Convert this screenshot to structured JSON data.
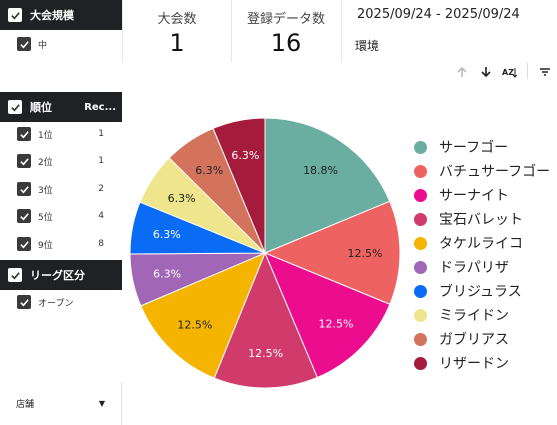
{
  "filters": {
    "size": {
      "title": "大会規模",
      "items": [
        {
          "label": "中"
        }
      ]
    },
    "rank": {
      "title": "順位",
      "col2": "Rec...",
      "items": [
        {
          "label": "1位",
          "count": "1"
        },
        {
          "label": "2位",
          "count": "1"
        },
        {
          "label": "3位",
          "count": "2"
        },
        {
          "label": "5位",
          "count": "4"
        },
        {
          "label": "9位",
          "count": "8"
        }
      ]
    },
    "league": {
      "title": "リーグ区分",
      "items": [
        {
          "label": "オープン"
        }
      ]
    },
    "store": {
      "label": "店舗"
    }
  },
  "scorecards": [
    {
      "title": "大会数",
      "value": "1"
    },
    {
      "title": "登録データ数",
      "value": "16"
    }
  ],
  "date_range": "2025/09/24 - 2025/09/24",
  "environment_label": "環境",
  "toolbar": {
    "icons": [
      "sort-ascending-icon",
      "sort-descending-icon",
      "sort-alpha-icon",
      "filter-icon"
    ],
    "az_label": "AZ"
  },
  "chart_data": {
    "type": "pie",
    "categories": [
      "サーフゴー",
      "バチュサーフゴー",
      "サーナイト",
      "宝石バレット",
      "タケルライコ",
      "ドラパリザ",
      "ブリジュラス",
      "ミライドン",
      "ガブリアス",
      "リザードン"
    ],
    "values": [
      18.8,
      12.5,
      12.5,
      12.5,
      12.5,
      6.3,
      6.3,
      6.3,
      6.3,
      6.3
    ],
    "labels": [
      "18.8%",
      "12.5%",
      "12.5%",
      "12.5%",
      "12.5%",
      "6.3%",
      "6.3%",
      "6.3%",
      "6.3%",
      "6.3%"
    ],
    "colors": [
      "#6aaea2",
      "#ef6262",
      "#ec0d8f",
      "#d13b6b",
      "#f4b400",
      "#a166b5",
      "#0a6cf5",
      "#efe58c",
      "#d3735b",
      "#a51b3c"
    ],
    "label_colors": [
      "#222222",
      "#222222",
      "#ffffff",
      "#ffffff",
      "#222222",
      "#ffffff",
      "#ffffff",
      "#222222",
      "#222222",
      "#ffffff"
    ],
    "legend_placement": "right",
    "start_angle_deg": 0,
    "direction": "clockwise"
  }
}
